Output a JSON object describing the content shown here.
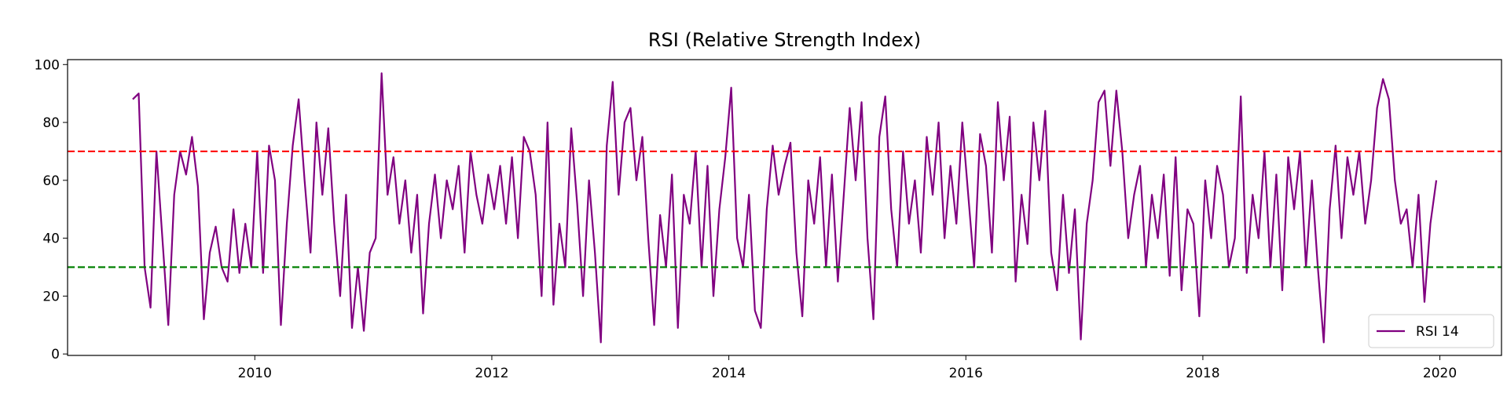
{
  "chart_data": {
    "type": "line",
    "title": "RSI (Relative Strength Index)",
    "x": [
      2008.97,
      2009.02,
      2009.07,
      2009.12,
      2009.17,
      2009.22,
      2009.27,
      2009.32,
      2009.37,
      2009.42,
      2009.47,
      2009.52,
      2009.57,
      2009.62,
      2009.67,
      2009.72,
      2009.77,
      2009.82,
      2009.87,
      2009.92,
      2009.97,
      2010.02,
      2010.07,
      2010.12,
      2010.17,
      2010.22,
      2010.27,
      2010.32,
      2010.37,
      2010.42,
      2010.47,
      2010.52,
      2010.57,
      2010.62,
      2010.67,
      2010.72,
      2010.77,
      2010.82,
      2010.87,
      2010.92,
      2010.97,
      2011.02,
      2011.07,
      2011.12,
      2011.17,
      2011.22,
      2011.27,
      2011.32,
      2011.37,
      2011.42,
      2011.47,
      2011.52,
      2011.57,
      2011.62,
      2011.67,
      2011.72,
      2011.77,
      2011.82,
      2011.87,
      2011.92,
      2011.97,
      2012.02,
      2012.07,
      2012.12,
      2012.17,
      2012.22,
      2012.27,
      2012.32,
      2012.37,
      2012.42,
      2012.47,
      2012.52,
      2012.57,
      2012.62,
      2012.67,
      2012.72,
      2012.77,
      2012.82,
      2012.87,
      2012.92,
      2012.97,
      2013.02,
      2013.07,
      2013.12,
      2013.17,
      2013.22,
      2013.27,
      2013.32,
      2013.37,
      2013.42,
      2013.47,
      2013.52,
      2013.57,
      2013.62,
      2013.67,
      2013.72,
      2013.77,
      2013.82,
      2013.87,
      2013.92,
      2013.97,
      2014.02,
      2014.07,
      2014.12,
      2014.17,
      2014.22,
      2014.27,
      2014.32,
      2014.37,
      2014.42,
      2014.47,
      2014.52,
      2014.57,
      2014.62,
      2014.67,
      2014.72,
      2014.77,
      2014.82,
      2014.87,
      2014.92,
      2014.97,
      2015.02,
      2015.07,
      2015.12,
      2015.17,
      2015.22,
      2015.27,
      2015.32,
      2015.37,
      2015.42,
      2015.47,
      2015.52,
      2015.57,
      2015.62,
      2015.67,
      2015.72,
      2015.77,
      2015.82,
      2015.87,
      2015.92,
      2015.97,
      2016.02,
      2016.07,
      2016.12,
      2016.17,
      2016.22,
      2016.27,
      2016.32,
      2016.37,
      2016.42,
      2016.47,
      2016.52,
      2016.57,
      2016.62,
      2016.67,
      2016.72,
      2016.77,
      2016.82,
      2016.87,
      2016.92,
      2016.97,
      2017.02,
      2017.07,
      2017.12,
      2017.17,
      2017.22,
      2017.27,
      2017.32,
      2017.37,
      2017.42,
      2017.47,
      2017.52,
      2017.57,
      2017.62,
      2017.67,
      2017.72,
      2017.77,
      2017.82,
      2017.87,
      2017.92,
      2017.97,
      2018.02,
      2018.07,
      2018.12,
      2018.17,
      2018.22,
      2018.27,
      2018.32,
      2018.37,
      2018.42,
      2018.47,
      2018.52,
      2018.57,
      2018.62,
      2018.67,
      2018.72,
      2018.77,
      2018.82,
      2018.87,
      2018.92,
      2018.97,
      2019.02,
      2019.07,
      2019.12,
      2019.17,
      2019.22,
      2019.27,
      2019.32,
      2019.37,
      2019.42,
      2019.47,
      2019.52,
      2019.57,
      2019.62,
      2019.67,
      2019.72,
      2019.77,
      2019.82,
      2019.87,
      2019.92,
      2019.97
    ],
    "series": [
      {
        "name": "RSI 14",
        "color": "purple",
        "values": [
          88,
          90,
          30,
          16,
          70,
          40,
          10,
          55,
          70,
          62,
          75,
          58,
          12,
          35,
          44,
          30,
          25,
          50,
          28,
          45,
          30,
          70,
          28,
          72,
          60,
          10,
          45,
          72,
          88,
          60,
          35,
          80,
          55,
          78,
          45,
          20,
          55,
          9,
          30,
          8,
          35,
          40,
          97,
          55,
          68,
          45,
          60,
          35,
          55,
          14,
          45,
          62,
          40,
          60,
          50,
          65,
          35,
          70,
          55,
          45,
          62,
          50,
          65,
          45,
          68,
          40,
          75,
          70,
          55,
          20,
          80,
          17,
          45,
          30,
          78,
          52,
          20,
          60,
          35,
          4,
          72,
          94,
          55,
          80,
          85,
          60,
          75,
          40,
          10,
          48,
          30,
          62,
          9,
          55,
          45,
          70,
          30,
          65,
          20,
          50,
          68,
          92,
          40,
          30,
          55,
          15,
          9,
          50,
          72,
          55,
          65,
          73,
          35,
          13,
          60,
          45,
          68,
          30,
          62,
          25,
          55,
          85,
          60,
          87,
          40,
          12,
          75,
          89,
          50,
          30,
          70,
          45,
          60,
          35,
          75,
          55,
          80,
          40,
          65,
          45,
          80,
          55,
          30,
          76,
          65,
          35,
          87,
          60,
          82,
          25,
          55,
          38,
          80,
          60,
          84,
          35,
          22,
          55,
          28,
          50,
          5,
          45,
          60,
          87,
          91,
          65,
          91,
          70,
          40,
          55,
          65,
          30,
          55,
          40,
          62,
          27,
          68,
          22,
          50,
          45,
          13,
          60,
          40,
          65,
          55,
          30,
          40,
          89,
          28,
          55,
          40,
          70,
          30,
          62,
          22,
          68,
          50,
          70,
          30,
          60,
          30,
          4,
          50,
          72,
          40,
          68,
          55,
          70,
          45,
          60,
          85,
          95,
          88,
          60,
          45,
          50,
          30,
          55,
          18,
          45,
          60
        ]
      }
    ],
    "hlines": [
      {
        "value": 70,
        "color": "red"
      },
      {
        "value": 30,
        "color": "green"
      }
    ],
    "xlim": [
      2008.42,
      2020.52
    ],
    "xticks": [
      2010,
      2012,
      2014,
      2016,
      2018,
      2020
    ],
    "ylim": [
      -0.5,
      101.7
    ],
    "yticks": [
      0,
      20,
      40,
      60,
      80,
      100
    ],
    "legend": "lower right"
  }
}
